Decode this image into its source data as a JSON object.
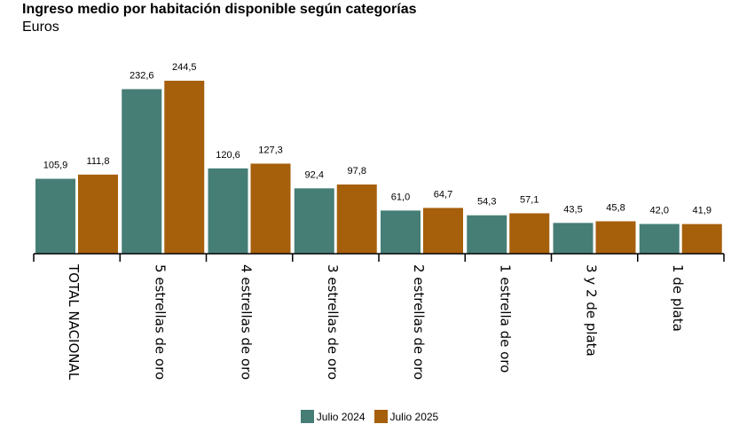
{
  "colors": {
    "series_a": "#467e76",
    "series_b": "#a65f0b"
  },
  "chart_data": {
    "type": "bar",
    "title": "Ingreso medio por habitación disponible según categorías",
    "subtitle": "Euros",
    "categories": [
      "TOTAL NACIONAL",
      "5 estrellas de oro",
      "4 estrellas de oro",
      "3 estrellas de oro",
      "2 estrellas de oro",
      "1 estrella de oro",
      "3 y 2 de plata",
      "1 de plata"
    ],
    "series": [
      {
        "name": "Julio 2024",
        "values": [
          105.9,
          232.6,
          120.6,
          92.4,
          61.0,
          54.3,
          43.5,
          42.0
        ],
        "labels": [
          "105,9",
          "232,6",
          "120,6",
          "92,4",
          "61,0",
          "54,3",
          "43,5",
          "42,0"
        ]
      },
      {
        "name": "Julio 2025",
        "values": [
          111.8,
          244.5,
          127.3,
          97.8,
          64.7,
          57.1,
          45.8,
          41.9
        ],
        "labels": [
          "111,8",
          "244,5",
          "127,3",
          "97,8",
          "64,7",
          "57,1",
          "45,8",
          "41,9"
        ]
      }
    ],
    "ylim": [
      0,
      250
    ],
    "grid": false,
    "legend": "bottom-center"
  }
}
